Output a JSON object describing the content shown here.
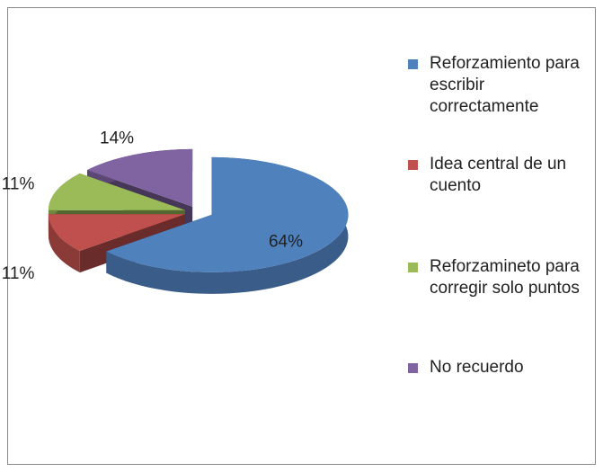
{
  "chart_data": {
    "type": "pie",
    "categories": [
      "Reforzamiento para escribir correctamente",
      "Idea central de un cuento",
      "Reforzamineto para corregir solo puntos",
      "No recuerdo"
    ],
    "values": [
      64,
      11,
      11,
      14
    ],
    "value_labels": [
      "64%",
      "11%",
      "11%",
      "14%"
    ],
    "colors": [
      "#4f81bd",
      "#c0504d",
      "#9bbb59",
      "#8064a2"
    ],
    "legend": "right"
  }
}
